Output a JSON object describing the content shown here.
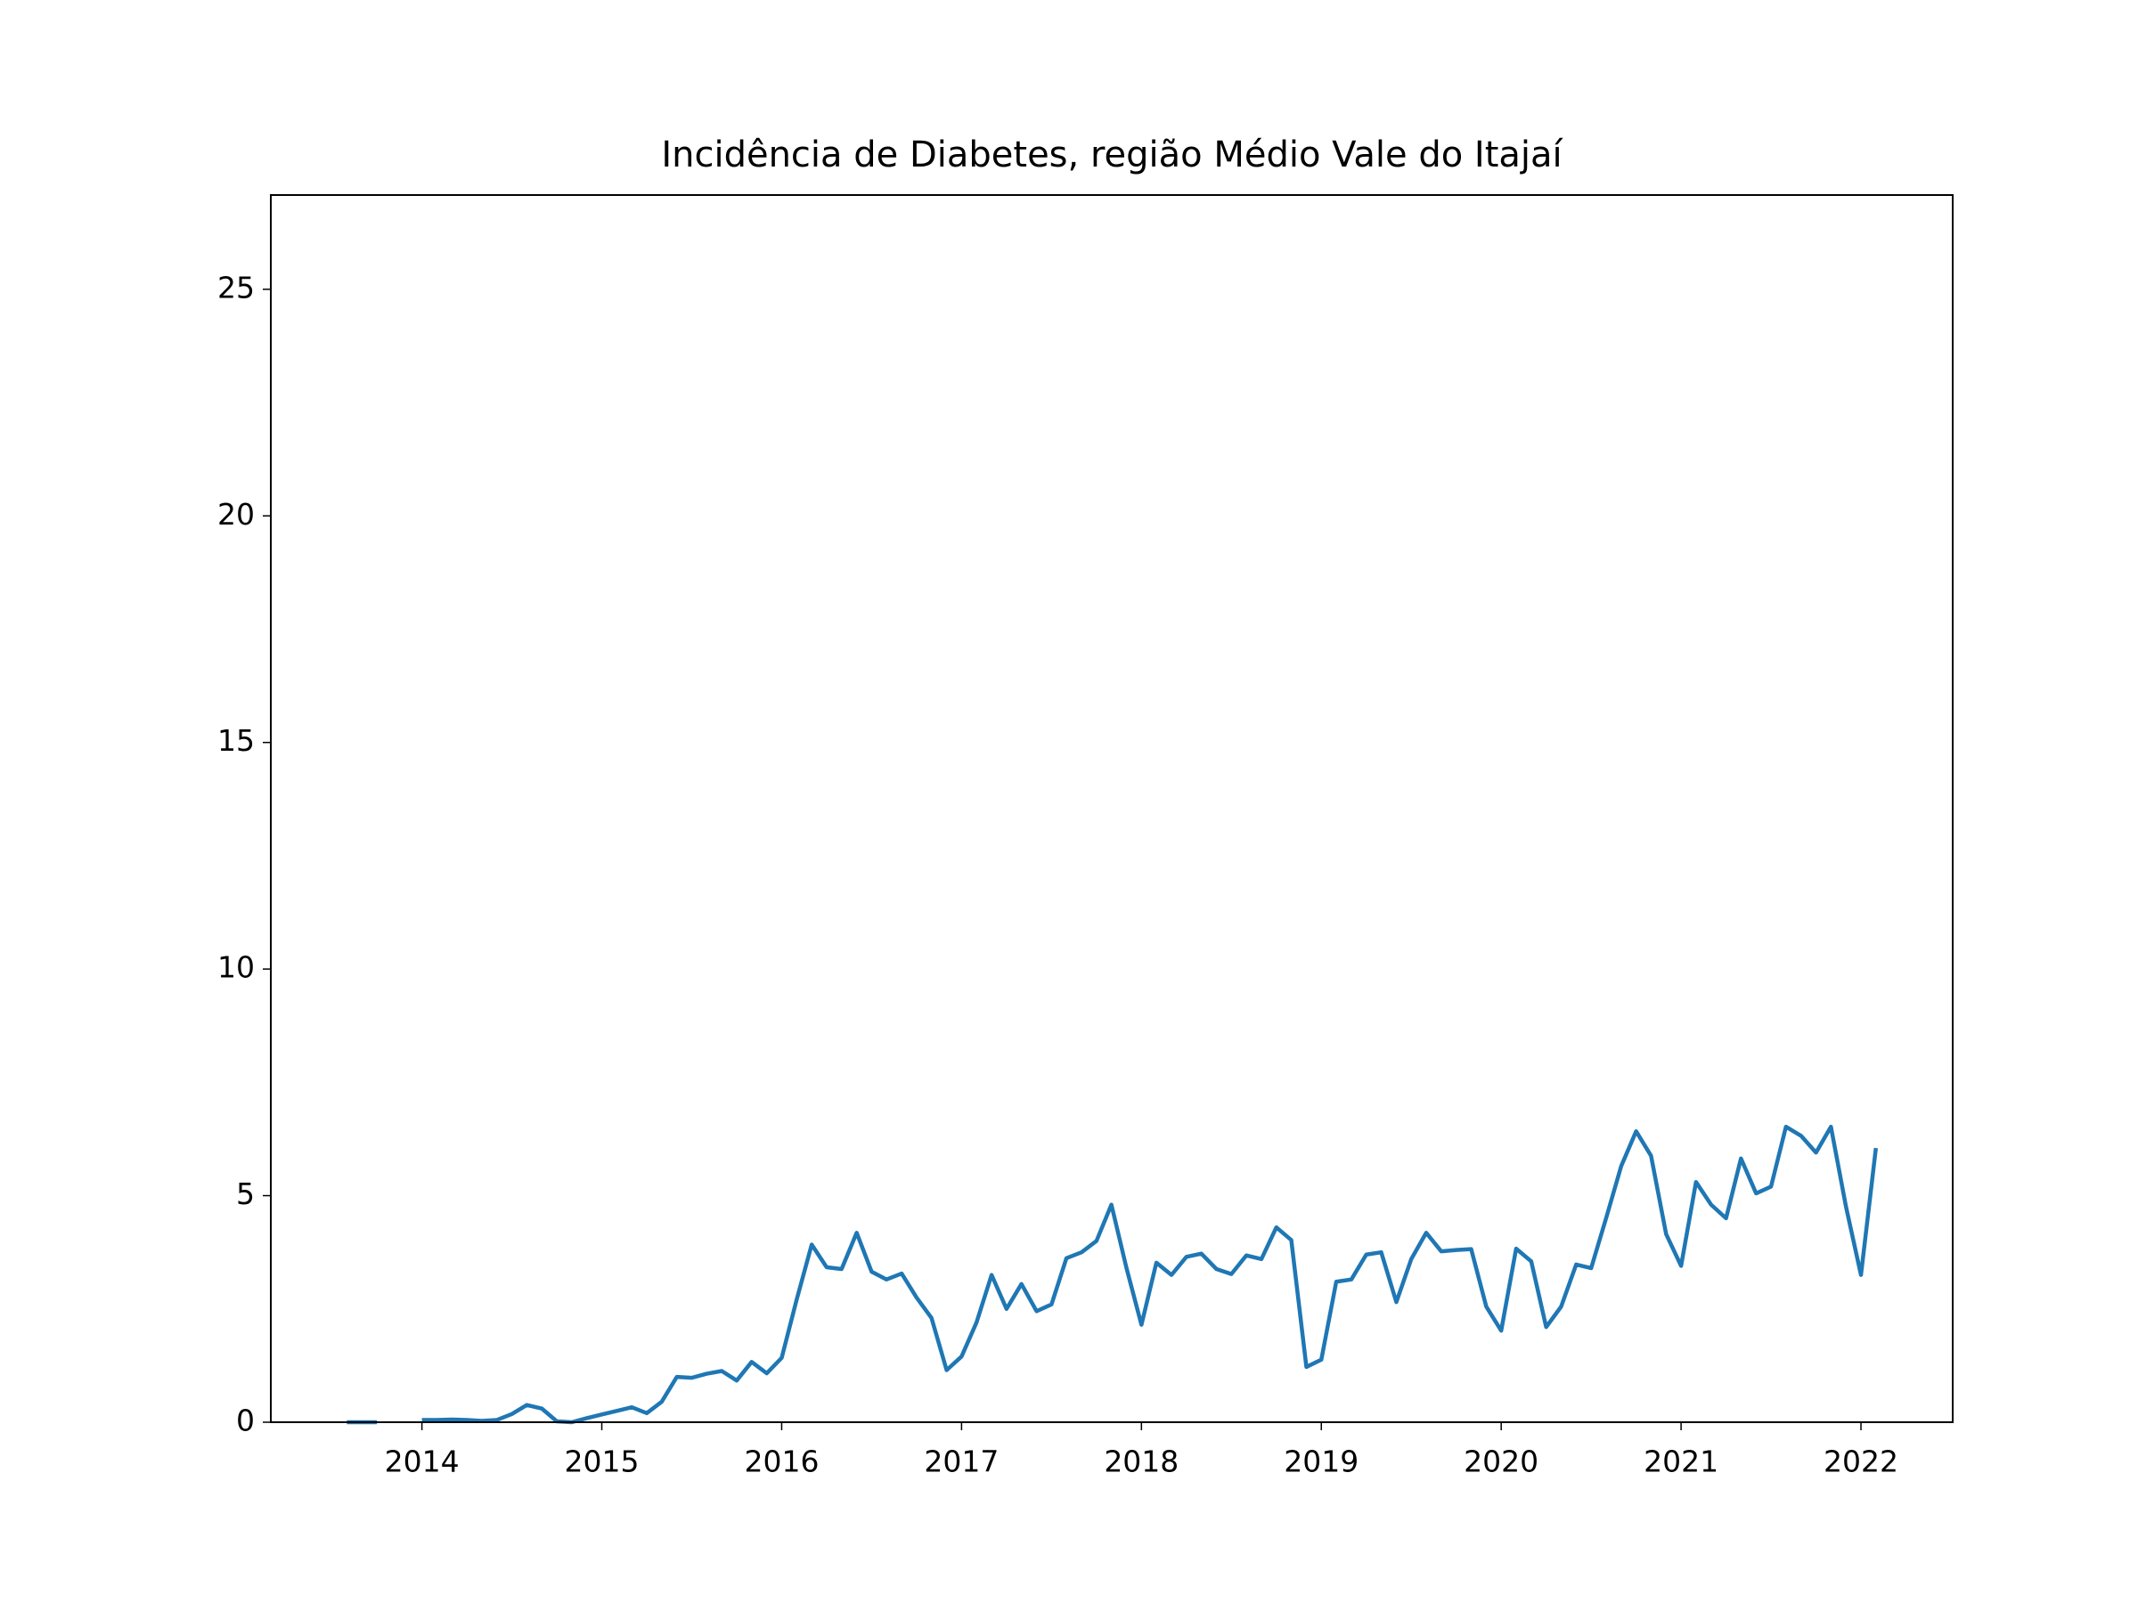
{
  "chart_data": {
    "type": "line",
    "title": "Incidência de Diabetes, região Médio Vale do Itajaí",
    "xlim": [
      2013.16,
      2022.51
    ],
    "xticks": [
      2014,
      2015,
      2016,
      2017,
      2018,
      2019,
      2020,
      2021,
      2022
    ],
    "ylim": [
      0,
      27.08
    ],
    "yticks": [
      0,
      5,
      10,
      15,
      20,
      25
    ],
    "x": [
      2013.583,
      2013.667,
      2013.75,
      2013.833,
      2013.917,
      2014,
      2014.083,
      2014.167,
      2014.25,
      2014.333,
      2014.417,
      2014.5,
      2014.583,
      2014.667,
      2014.75,
      2014.833,
      2014.917,
      2015,
      2015.083,
      2015.167,
      2015.25,
      2015.333,
      2015.417,
      2015.5,
      2015.583,
      2015.667,
      2015.75,
      2015.833,
      2015.917,
      2016,
      2016.083,
      2016.167,
      2016.25,
      2016.333,
      2016.417,
      2016.5,
      2016.583,
      2016.667,
      2016.75,
      2016.833,
      2016.917,
      2017,
      2017.083,
      2017.167,
      2017.25,
      2017.333,
      2017.417,
      2017.5,
      2017.583,
      2017.667,
      2017.75,
      2017.833,
      2017.917,
      2018,
      2018.083,
      2018.167,
      2018.25,
      2018.333,
      2018.417,
      2018.5,
      2018.583,
      2018.667,
      2018.75,
      2018.833,
      2018.917,
      2019,
      2019.083,
      2019.167,
      2019.25,
      2019.333,
      2019.417,
      2019.5,
      2019.583,
      2019.667,
      2019.75,
      2019.833,
      2019.917,
      2020,
      2020.083,
      2020.167,
      2020.25,
      2020.333,
      2020.417,
      2020.5,
      2020.583,
      2020.667,
      2020.75,
      2020.833,
      2020.917,
      2021,
      2021.083,
      2021.167,
      2021.25,
      2021.333,
      2021.417,
      2021.5,
      2021.583,
      2021.667,
      2021.75,
      2021.833,
      2021.917,
      2022,
      2022.083
    ],
    "series": [
      {
        "color": "#1f77b4",
        "values": [
          0,
          0,
          0,
          null,
          null,
          0.05,
          0.05,
          0.06,
          0.05,
          0.03,
          0.05,
          0.18,
          0.38,
          0.3,
          0.02,
          0.0,
          0.09,
          0.17,
          0.25,
          0.33,
          0.2,
          0.45,
          1.0,
          0.98,
          1.07,
          1.13,
          0.92,
          1.33,
          1.08,
          1.42,
          2.7,
          3.92,
          3.42,
          3.38,
          4.18,
          3.32,
          3.15,
          3.28,
          2.75,
          2.3,
          1.15,
          1.45,
          2.2,
          3.25,
          2.5,
          3.05,
          2.45,
          2.6,
          3.62,
          3.75,
          4.0,
          4.8,
          3.4,
          2.15,
          3.52,
          3.25,
          3.65,
          3.72,
          3.38,
          3.27,
          3.68,
          3.6,
          4.3,
          4.02,
          1.22,
          1.38,
          3.1,
          3.15,
          3.7,
          3.75,
          2.65,
          3.6,
          4.18,
          3.77,
          3.8,
          3.82,
          2.55,
          2.02,
          3.83,
          3.55,
          2.1,
          2.55,
          3.48,
          3.4,
          4.5,
          5.65,
          6.42,
          5.88,
          4.15,
          3.45,
          5.3,
          4.8,
          4.5,
          5.82,
          5.05,
          5.2,
          6.52,
          6.32,
          5.95,
          6.52,
          4.75,
          3.25,
          6.05
        ]
      }
    ]
  }
}
